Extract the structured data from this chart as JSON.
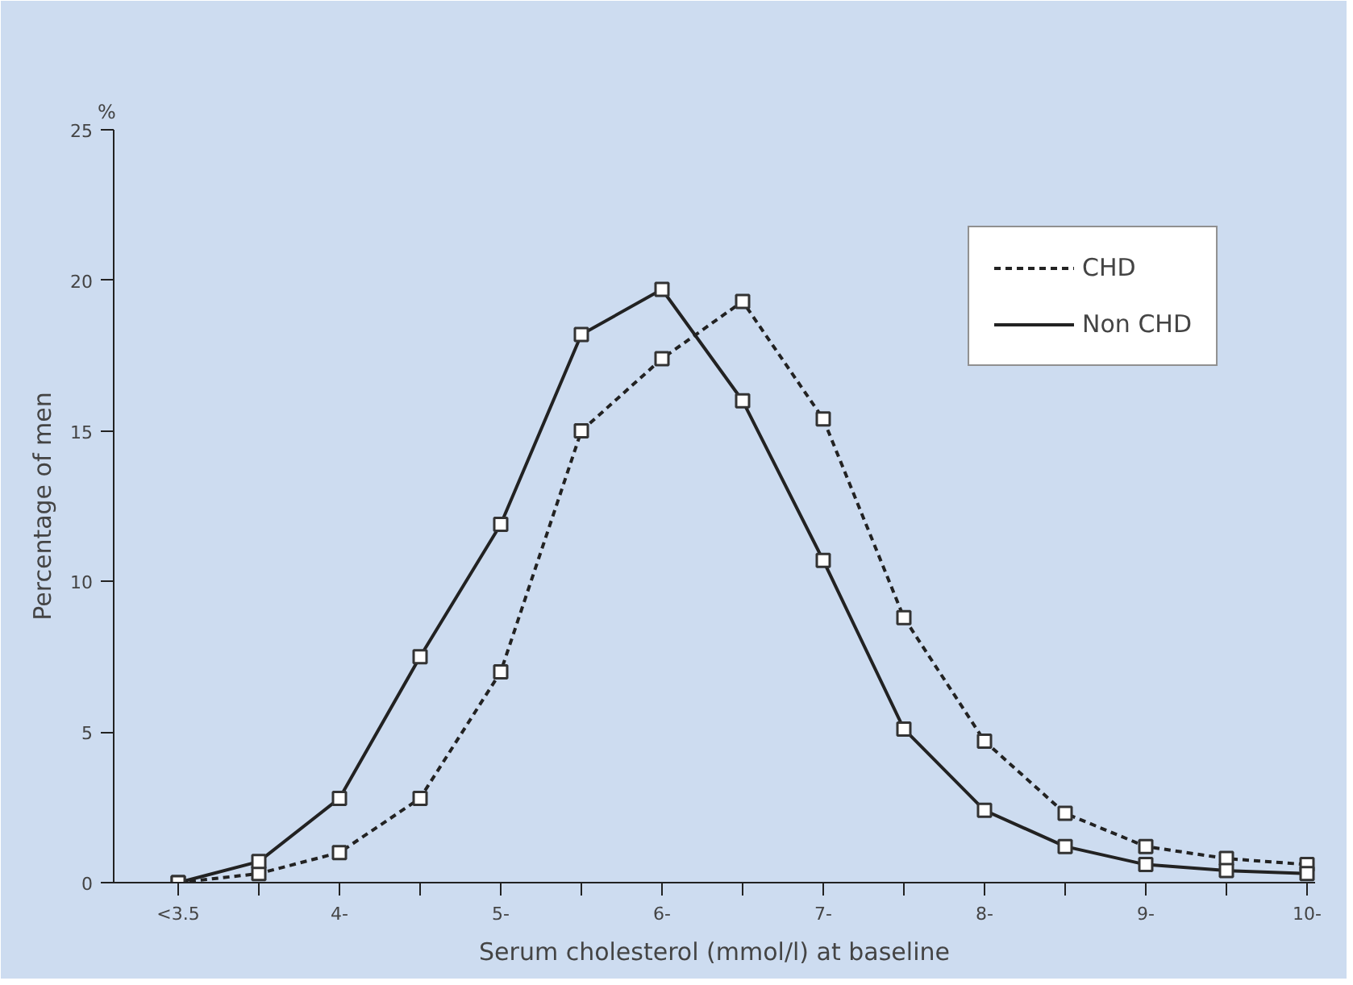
{
  "chart_data": {
    "type": "line",
    "xlabel": "Serum cholesterol (mmol/l) at baseline",
    "ylabel": "Percentage of men",
    "annotations": [
      "%"
    ],
    "x": [
      3,
      3.5,
      4,
      4.5,
      5,
      5.5,
      6,
      6.5,
      7,
      7.5,
      8,
      8.5,
      9,
      9.5,
      10
    ],
    "series": [
      {
        "name": "CHD",
        "color": "#222222",
        "line_style": "dashed",
        "values": [
          0,
          0.3,
          1.0,
          2.8,
          7.0,
          15.0,
          17.4,
          19.3,
          15.4,
          8.8,
          4.7,
          2.3,
          1.2,
          0.8,
          0.6
        ]
      },
      {
        "name": "Non CHD",
        "color": "#222222",
        "line_style": "solid",
        "values": [
          0,
          0.7,
          2.8,
          7.5,
          11.9,
          18.2,
          19.7,
          16.0,
          10.7,
          5.1,
          2.4,
          1.2,
          0.6,
          0.4,
          0.3
        ]
      }
    ],
    "xlim": [
      2.6,
      10.05
    ],
    "ylim": [
      0,
      25
    ],
    "xticks": [
      {
        "value": 3,
        "label": "<3.5"
      },
      {
        "value": 3.5,
        "label": null
      },
      {
        "value": 4,
        "label": "4-"
      },
      {
        "value": 4.5,
        "label": null
      },
      {
        "value": 5,
        "label": "5-"
      },
      {
        "value": 5.5,
        "label": null
      },
      {
        "value": 6,
        "label": "6-"
      },
      {
        "value": 6.5,
        "label": null
      },
      {
        "value": 7,
        "label": "7-"
      },
      {
        "value": 7.5,
        "label": null
      },
      {
        "value": 8,
        "label": "8-"
      },
      {
        "value": 8.5,
        "label": null
      },
      {
        "value": 9,
        "label": "9-"
      },
      {
        "value": 9.5,
        "label": null
      },
      {
        "value": 10,
        "label": "10-"
      }
    ],
    "yticks": [
      0,
      5,
      10,
      15,
      20,
      25
    ],
    "marker": "square",
    "grid": false,
    "legend": "top right"
  }
}
